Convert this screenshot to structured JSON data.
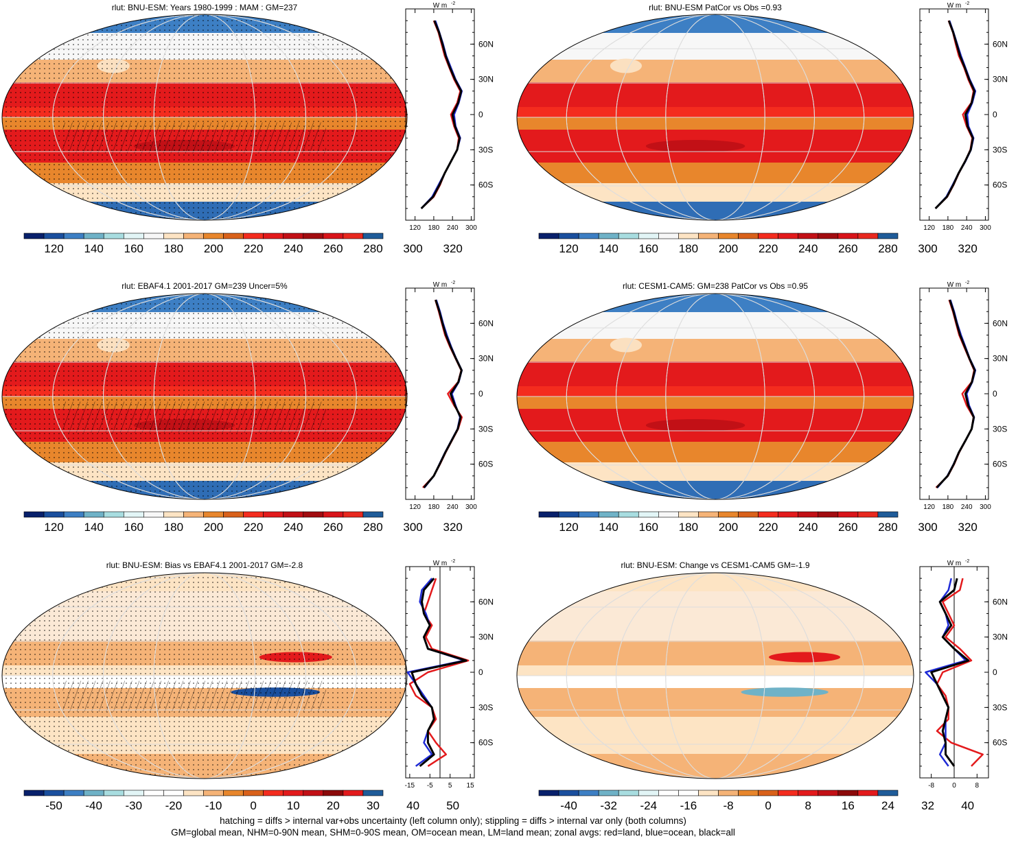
{
  "colors": {
    "abs_palette": [
      "#08206b",
      "#1a4f9e",
      "#3d7fc4",
      "#6fb2c7",
      "#a8dde0",
      "#e2f5f6",
      "#f7f7f7",
      "#fde4c4",
      "#f5b377",
      "#e8862c",
      "#d9611a",
      "#f42c1e",
      "#e31a1c",
      "#c21016",
      "#a20c10",
      "#d9141a",
      "#e8281f",
      "#1f5c99"
    ],
    "diff_palette": [
      "#08206b",
      "#1a4f9e",
      "#3d7fc4",
      "#6fb2c7",
      "#a8dde0",
      "#e2f5f6",
      "#ffffff",
      "#ffffff",
      "#fde4c4",
      "#f5b377",
      "#e8862c",
      "#d9611a",
      "#f42c1e",
      "#e31a1c",
      "#c21016",
      "#8b0a0a",
      "#e31a1c",
      "#1f5c99"
    ],
    "land": "#e31a1c",
    "ocean": "#1f2bd6",
    "all": "#000000"
  },
  "footer": {
    "line1": "hatching = diffs > internal var+obs uncertainty (left column only); stippling = diffs > internal var only (both columns)",
    "line2": "GM=global mean, NHM=0-90N mean, SHM=0-90S mean, OM=ocean mean, LM=land mean; zonal avgs: red=land, blue=ocean, black=all"
  },
  "chart_data": [
    {
      "type": "heatmap",
      "title": "rlut: BNU-ESM: Years 1980-1999 : MAM : GM=237",
      "colorbar": {
        "labels": [
          "120",
          "140",
          "160",
          "180",
          "200",
          "220",
          "240",
          "260",
          "280",
          "300",
          "320"
        ],
        "min": 110,
        "max": 330,
        "kind": "abs"
      },
      "zonal": {
        "units": "W m",
        "units_exp": "-2",
        "xlabels": [
          "120",
          "180",
          "240",
          "300"
        ],
        "xlim": [
          90,
          310
        ],
        "ylabels": [
          "60N",
          "30N",
          "0",
          "30S",
          "60S"
        ],
        "ylim": [
          -90,
          90
        ],
        "lat": [
          -80,
          -70,
          -60,
          -50,
          -40,
          -30,
          -20,
          -10,
          0,
          10,
          20,
          30,
          40,
          50,
          60,
          70,
          80
        ],
        "land": [
          140,
          180,
          200,
          215,
          235,
          255,
          260,
          245,
          235,
          255,
          265,
          245,
          230,
          215,
          205,
          195,
          180
        ],
        "ocean": [
          140,
          175,
          195,
          215,
          235,
          255,
          265,
          250,
          245,
          260,
          270,
          250,
          235,
          220,
          210,
          198,
          185
        ],
        "all": [
          140,
          178,
          198,
          215,
          235,
          255,
          263,
          248,
          240,
          258,
          268,
          248,
          232,
          218,
          208,
          197,
          182
        ]
      }
    },
    {
      "type": "heatmap",
      "title": "rlut: BNU-ESM PatCor vs Obs =0.93",
      "colorbar": {
        "labels": [
          "120",
          "140",
          "160",
          "180",
          "200",
          "220",
          "240",
          "260",
          "280",
          "300",
          "320"
        ],
        "min": 110,
        "max": 330,
        "kind": "abs"
      },
      "zonal": {
        "units": "W m",
        "units_exp": "-2",
        "xlabels": [
          "120",
          "180",
          "240",
          "300"
        ],
        "xlim": [
          90,
          310
        ],
        "ylabels": [
          "60N",
          "30N",
          "0",
          "30S",
          "60S"
        ],
        "ylim": [
          -90,
          90
        ],
        "lat": [
          -80,
          -70,
          -60,
          -50,
          -40,
          -30,
          -20,
          -10,
          0,
          10,
          20,
          30,
          40,
          50,
          60,
          70,
          80
        ],
        "land": [
          140,
          178,
          198,
          215,
          235,
          252,
          258,
          240,
          228,
          255,
          262,
          245,
          232,
          215,
          205,
          196,
          182
        ],
        "ocean": [
          140,
          175,
          195,
          214,
          236,
          254,
          262,
          246,
          242,
          258,
          268,
          250,
          236,
          222,
          210,
          198,
          185
        ],
        "all": [
          140,
          177,
          197,
          214,
          235,
          253,
          260,
          243,
          236,
          256,
          265,
          248,
          234,
          219,
          208,
          197,
          183
        ]
      }
    },
    {
      "type": "heatmap",
      "title": "rlut: EBAF4.1 2001-2017 GM=239 Uncer=5%",
      "colorbar": {
        "labels": [
          "120",
          "140",
          "160",
          "180",
          "200",
          "220",
          "240",
          "260",
          "280",
          "300",
          "320"
        ],
        "min": 110,
        "max": 330,
        "kind": "abs"
      },
      "zonal": {
        "units": "W m",
        "units_exp": "-2",
        "xlabels": [
          "120",
          "180",
          "240",
          "300"
        ],
        "xlim": [
          90,
          310
        ],
        "ylabels": [
          "60N",
          "30N",
          "0",
          "30S",
          "60S"
        ],
        "ylim": [
          -90,
          90
        ],
        "lat": [
          -80,
          -70,
          -60,
          -50,
          -40,
          -30,
          -20,
          -10,
          0,
          10,
          20,
          30,
          40,
          50,
          60,
          70,
          80
        ],
        "land": [
          145,
          180,
          200,
          218,
          238,
          258,
          270,
          245,
          225,
          258,
          268,
          250,
          232,
          216,
          206,
          196,
          185
        ],
        "ocean": [
          150,
          180,
          198,
          216,
          236,
          256,
          264,
          250,
          238,
          260,
          270,
          252,
          236,
          222,
          210,
          200,
          188
        ],
        "all": [
          148,
          180,
          199,
          217,
          237,
          257,
          266,
          248,
          234,
          259,
          269,
          251,
          234,
          219,
          208,
          198,
          186
        ]
      }
    },
    {
      "type": "heatmap",
      "title": "rlut: CESM1-CAM5: GM=238 PatCor vs Obs =0.95",
      "colorbar": {
        "labels": [
          "120",
          "140",
          "160",
          "180",
          "200",
          "220",
          "240",
          "260",
          "280",
          "300",
          "320"
        ],
        "min": 110,
        "max": 330,
        "kind": "abs"
      },
      "zonal": {
        "units": "W m",
        "units_exp": "-2",
        "xlabels": [
          "120",
          "180",
          "240",
          "300"
        ],
        "xlim": [
          90,
          310
        ],
        "ylabels": [
          "60N",
          "30N",
          "0",
          "30S",
          "60S"
        ],
        "ylim": [
          -90,
          90
        ],
        "lat": [
          -80,
          -70,
          -60,
          -50,
          -40,
          -30,
          -20,
          -10,
          0,
          10,
          20,
          30,
          40,
          50,
          60,
          70,
          80
        ],
        "land": [
          142,
          180,
          200,
          216,
          236,
          256,
          262,
          240,
          226,
          256,
          264,
          248,
          232,
          216,
          206,
          196,
          184
        ],
        "ocean": [
          146,
          178,
          198,
          215,
          236,
          256,
          264,
          248,
          240,
          258,
          268,
          250,
          236,
          222,
          210,
          200,
          188
        ],
        "all": [
          144,
          179,
          199,
          215,
          236,
          256,
          263,
          245,
          236,
          257,
          266,
          249,
          234,
          219,
          208,
          198,
          186
        ]
      }
    },
    {
      "type": "heatmap",
      "title": "rlut: BNU-ESM: Bias vs EBAF4.1 2001-2017 GM=-2.8",
      "colorbar": {
        "labels": [
          "-50",
          "-40",
          "-30",
          "-20",
          "-10",
          "0",
          "10",
          "20",
          "30",
          "40",
          "50"
        ],
        "min": -55,
        "max": 55,
        "kind": "diff"
      },
      "zonal": {
        "units": "W m",
        "units_exp": "-2",
        "xlabels": [
          "-15",
          "-5",
          "5",
          "15"
        ],
        "xlim": [
          -17,
          17
        ],
        "zero": 0,
        "ylabels": [
          "60N",
          "30N",
          "0",
          "30S",
          "60S"
        ],
        "ylim": [
          -90,
          90
        ],
        "lat": [
          -80,
          -70,
          -60,
          -50,
          -40,
          -30,
          -20,
          -10,
          0,
          10,
          20,
          30,
          40,
          50,
          60,
          70,
          80
        ],
        "land": [
          -6,
          3,
          -2,
          -6,
          -2,
          -4,
          -12,
          -15,
          -6,
          14,
          -4,
          -7,
          -4,
          -8,
          -6,
          -4,
          -2
        ],
        "ocean": [
          -12,
          -4,
          -8,
          -6,
          -3,
          -4,
          -8,
          -12,
          -16,
          12,
          -6,
          -8,
          -5,
          -7,
          -10,
          -9,
          -4
        ],
        "all": [
          -10,
          -3,
          -6,
          -6,
          -3,
          -4,
          -9,
          -12,
          -14,
          13,
          -6,
          -8,
          -5,
          -8,
          -9,
          -8,
          -3
        ]
      }
    },
    {
      "type": "heatmap",
      "title": "rlut: BNU-ESM: Change vs CESM1-CAM5 GM=-1.9",
      "colorbar": {
        "labels": [
          "-40",
          "-32",
          "-24",
          "-16",
          "-8",
          "0",
          "8",
          "16",
          "24",
          "32",
          "40"
        ],
        "min": -44,
        "max": 44,
        "kind": "diff"
      },
      "zonal": {
        "units": "W m",
        "units_exp": "-2",
        "xlabels": [
          "-8",
          "0",
          "8"
        ],
        "xlim": [
          -12,
          12
        ],
        "zero": 0,
        "ylabels": [
          "60N",
          "30N",
          "0",
          "30S",
          "60S"
        ],
        "ylim": [
          -90,
          90
        ],
        "lat": [
          -80,
          -70,
          -60,
          -50,
          -40,
          -30,
          -20,
          -10,
          0,
          10,
          20,
          30,
          40,
          50,
          60,
          70,
          80
        ],
        "land": [
          6,
          10,
          -1,
          -6,
          -2,
          -2,
          -3,
          -6,
          -4,
          6,
          2,
          -3,
          0,
          -2,
          -4,
          2,
          3
        ],
        "ocean": [
          -2,
          -5,
          -3,
          -3,
          -3,
          -2,
          -4,
          -6,
          -10,
          4,
          0,
          -4,
          -2,
          -3,
          -5,
          -2,
          -1
        ],
        "all": [
          0,
          -3,
          -3,
          -4,
          -3,
          -2,
          -4,
          -6,
          -8,
          5,
          0,
          -4,
          -1,
          -3,
          -5,
          0,
          1
        ]
      }
    }
  ]
}
